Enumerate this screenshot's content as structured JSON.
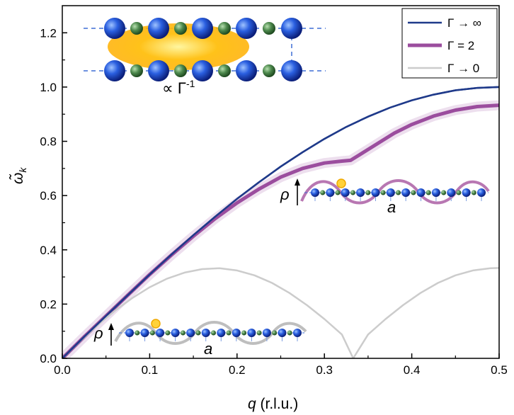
{
  "chart_data": {
    "type": "line",
    "xlabel_var": "q",
    "xlabel_unit": " (r.l.u.)",
    "ylabel": "ω̃",
    "ylabel_sub": "k",
    "xlim": [
      0.0,
      0.5
    ],
    "ylim": [
      0.0,
      1.3
    ],
    "xticks": [
      "0.0",
      "0.1",
      "0.2",
      "0.3",
      "0.4",
      "0.5"
    ],
    "yticks": [
      "0.0",
      "0.2",
      "0.4",
      "0.6",
      "0.8",
      "1.0",
      "1.2"
    ],
    "legend_position": "top-right",
    "series": [
      {
        "name": "Γ → ∞",
        "color": "#1f3a8a",
        "x": [
          0.0,
          0.025,
          0.05,
          0.075,
          0.1,
          0.125,
          0.15,
          0.175,
          0.2,
          0.225,
          0.25,
          0.275,
          0.3,
          0.325,
          0.35,
          0.375,
          0.4,
          0.425,
          0.45,
          0.475,
          0.5
        ],
        "values": [
          0.0,
          0.079,
          0.156,
          0.233,
          0.309,
          0.383,
          0.454,
          0.522,
          0.588,
          0.649,
          0.707,
          0.76,
          0.809,
          0.853,
          0.891,
          0.924,
          0.951,
          0.972,
          0.988,
          0.997,
          1.0
        ]
      },
      {
        "name": "Γ = 2",
        "color": "#9b4d9e",
        "x": [
          0.0,
          0.025,
          0.05,
          0.075,
          0.1,
          0.125,
          0.15,
          0.175,
          0.2,
          0.225,
          0.25,
          0.275,
          0.3,
          0.32,
          0.33,
          0.34,
          0.36,
          0.38,
          0.4,
          0.425,
          0.45,
          0.475,
          0.5
        ],
        "values": [
          0.0,
          0.079,
          0.156,
          0.233,
          0.309,
          0.381,
          0.45,
          0.515,
          0.573,
          0.624,
          0.668,
          0.7,
          0.72,
          0.727,
          0.73,
          0.75,
          0.79,
          0.83,
          0.862,
          0.893,
          0.915,
          0.928,
          0.933
        ]
      },
      {
        "name": "Γ → 0",
        "color": "#cccccc",
        "x": [
          0.0,
          0.02,
          0.04,
          0.06,
          0.08,
          0.1,
          0.12,
          0.14,
          0.16,
          0.18,
          0.2,
          0.22,
          0.24,
          0.26,
          0.28,
          0.3,
          0.32,
          0.333,
          0.35,
          0.37,
          0.39,
          0.41,
          0.43,
          0.45,
          0.47,
          0.49,
          0.5
        ],
        "values": [
          0.0,
          0.062,
          0.121,
          0.175,
          0.222,
          0.262,
          0.294,
          0.316,
          0.329,
          0.332,
          0.324,
          0.306,
          0.278,
          0.241,
          0.196,
          0.145,
          0.088,
          0.0,
          0.088,
          0.145,
          0.196,
          0.241,
          0.278,
          0.306,
          0.324,
          0.332,
          0.333
        ]
      }
    ],
    "insets": {
      "top_left_label": "∝ Γ",
      "top_left_exponent": "-1",
      "rho_label": "ρ",
      "a_label": "a"
    }
  }
}
